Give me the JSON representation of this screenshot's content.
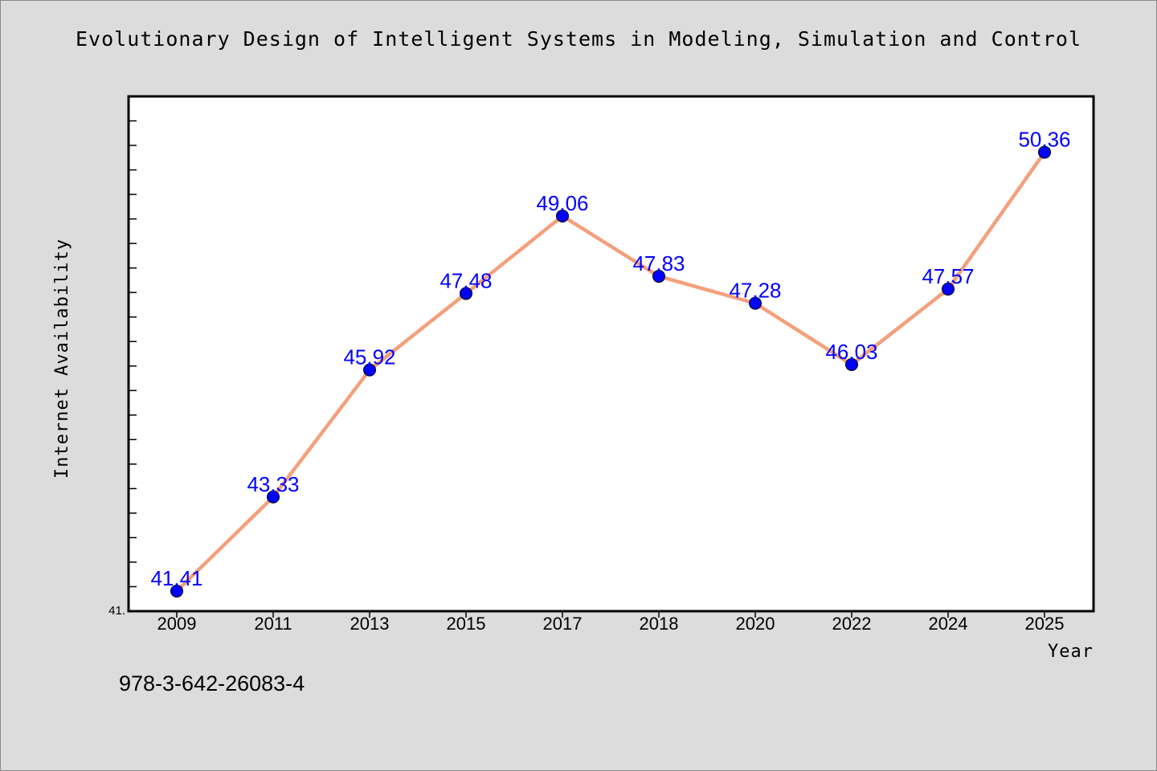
{
  "chart_data": {
    "type": "line",
    "title": "Evolutionary Design of Intelligent Systems in Modeling, Simulation and Control",
    "xlabel": "Year",
    "ylabel": "Internet Availability",
    "categories": [
      "2009",
      "2011",
      "2013",
      "2015",
      "2017",
      "2018",
      "2020",
      "2022",
      "2024",
      "2025"
    ],
    "series": [
      {
        "values": [
          41.41,
          43.33,
          45.92,
          47.48,
          49.06,
          47.83,
          47.28,
          46.03,
          47.57,
          50.36
        ],
        "labels": [
          "41.41",
          "43.33",
          "45.92",
          "47.48",
          "49.06",
          "47.83",
          "47.28",
          "46.03",
          "47.57",
          "50.36"
        ]
      }
    ],
    "ylim": [
      41.0,
      51.5
    ],
    "yticks": {
      "labeled": [
        "41."
      ],
      "minor_step": 0.5
    },
    "grid": false,
    "legend": "none",
    "colors": {
      "line": "#f4a07c",
      "marker": "#0000ff",
      "label": "#0000ff",
      "background": "#dcdcdc",
      "plot_background": "#ffffff"
    }
  },
  "footnote": "978-3-642-26083-4"
}
